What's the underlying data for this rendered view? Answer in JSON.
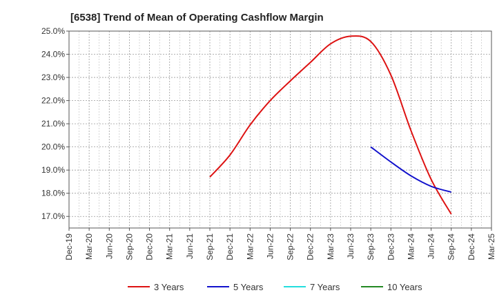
{
  "chart_data": {
    "type": "line",
    "title": "[6538]  Trend of Mean of Operating Cashflow Margin",
    "xlabel": "",
    "ylabel": "",
    "categories": [
      "Dec-19",
      "Mar-20",
      "Jun-20",
      "Sep-20",
      "Dec-20",
      "Mar-21",
      "Jun-21",
      "Sep-21",
      "Dec-21",
      "Mar-22",
      "Jun-22",
      "Sep-22",
      "Dec-22",
      "Mar-23",
      "Jun-23",
      "Sep-23",
      "Dec-23",
      "Mar-24",
      "Jun-24",
      "Sep-24",
      "Dec-24",
      "Mar-25"
    ],
    "y_ticks": [
      "17.0%",
      "18.0%",
      "19.0%",
      "20.0%",
      "21.0%",
      "22.0%",
      "23.0%",
      "24.0%",
      "25.0%"
    ],
    "ylim": [
      16.5,
      25.0
    ],
    "grid": true,
    "legend_position": "bottom",
    "series": [
      {
        "name": "3 Years",
        "color": "#dd1111",
        "points": [
          {
            "x": "Sep-21",
            "y": 18.7
          },
          {
            "x": "Dec-21",
            "y": 19.65
          },
          {
            "x": "Mar-22",
            "y": 20.95
          },
          {
            "x": "Jun-22",
            "y": 22.0
          },
          {
            "x": "Sep-22",
            "y": 22.85
          },
          {
            "x": "Dec-22",
            "y": 23.65
          },
          {
            "x": "Mar-23",
            "y": 24.45
          },
          {
            "x": "Jun-23",
            "y": 24.78
          },
          {
            "x": "Sep-23",
            "y": 24.55
          },
          {
            "x": "Dec-23",
            "y": 23.1
          },
          {
            "x": "Mar-24",
            "y": 20.7
          },
          {
            "x": "Jun-24",
            "y": 18.6
          },
          {
            "x": "Sep-24",
            "y": 17.1
          }
        ]
      },
      {
        "name": "5 Years",
        "color": "#1111cc",
        "points": [
          {
            "x": "Sep-23",
            "y": 20.0
          },
          {
            "x": "Dec-23",
            "y": 19.35
          },
          {
            "x": "Mar-24",
            "y": 18.75
          },
          {
            "x": "Jun-24",
            "y": 18.3
          },
          {
            "x": "Sep-24",
            "y": 18.05
          }
        ]
      },
      {
        "name": "7 Years",
        "color": "#22dddd",
        "points": []
      },
      {
        "name": "10 Years",
        "color": "#228822",
        "points": []
      }
    ]
  }
}
